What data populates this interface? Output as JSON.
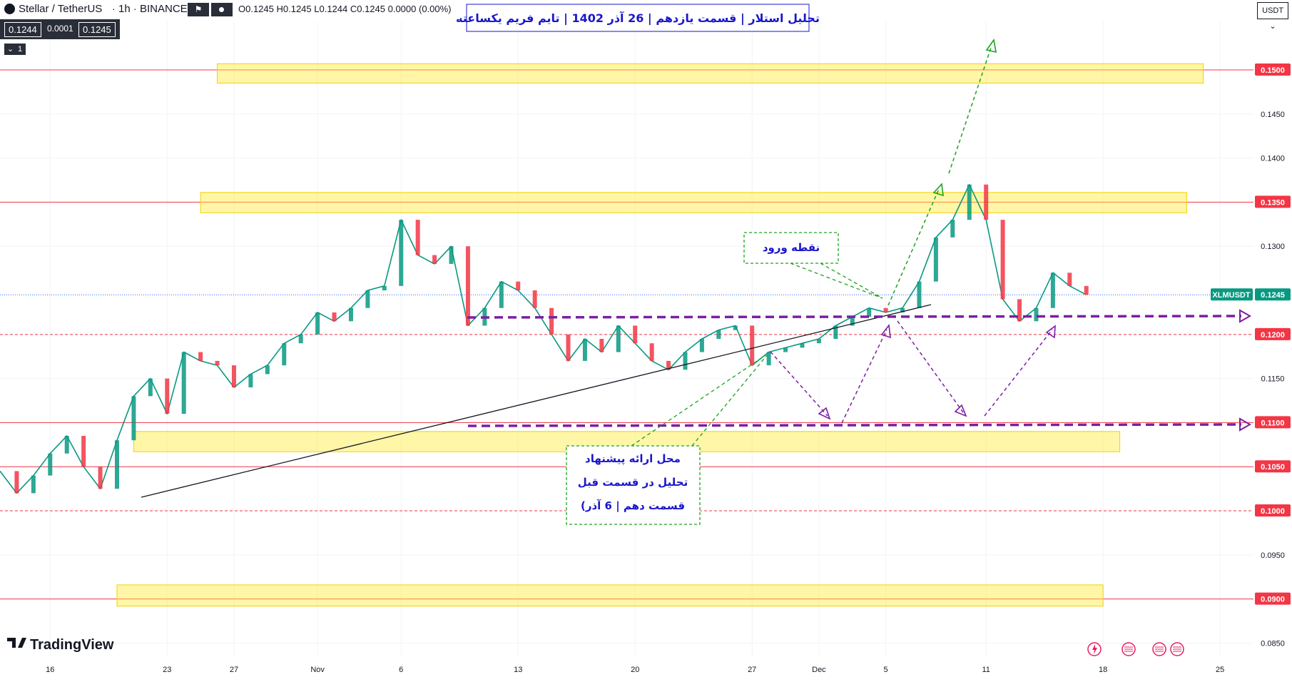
{
  "header": {
    "symbol_title": "Stellar / TetherUS",
    "interval": "1h",
    "exchange": "BINANCE",
    "ohlc": "O0.1245 H0.1245 L0.1244 C0.1245 0.0000 (0.00%)",
    "bid": "0.1244",
    "spread": "0.0001",
    "ask": "0.1245",
    "indicator_count": "1",
    "currency": "USDT"
  },
  "chart_data": {
    "type": "line",
    "title": "تحلیل استلار | قسمت یازدهم | 26 آذر 1402 | تایم فریم یکساعته",
    "symbol_tag": "XLMUSDT",
    "last_price": 0.1245,
    "last_price_label": "0.1245",
    "ylim": [
      0.0835,
      0.1555
    ],
    "y_ticks": [
      {
        "v": 0.15,
        "label": "0.1500",
        "highlight": true
      },
      {
        "v": 0.145,
        "label": "0.1450"
      },
      {
        "v": 0.14,
        "label": "0.1400"
      },
      {
        "v": 0.135,
        "label": "0.1350",
        "highlight": true
      },
      {
        "v": 0.13,
        "label": "0.1300"
      },
      {
        "v": 0.12,
        "label": "0.1200",
        "highlight": true
      },
      {
        "v": 0.115,
        "label": "0.1150"
      },
      {
        "v": 0.11,
        "label": "0.1100",
        "highlight": true
      },
      {
        "v": 0.105,
        "label": "0.1050",
        "highlight": true
      },
      {
        "v": 0.1,
        "label": "0.1000",
        "highlight": true
      },
      {
        "v": 0.095,
        "label": "0.0950"
      },
      {
        "v": 0.09,
        "label": "0.0900",
        "highlight": true
      },
      {
        "v": 0.085,
        "label": "0.0850"
      }
    ],
    "x_range": [
      "2023-10-13",
      "2023-12-27"
    ],
    "x_ticks": [
      {
        "date": "2023-10-16",
        "label": "16"
      },
      {
        "date": "2023-10-23",
        "label": "23"
      },
      {
        "date": "2023-10-27",
        "label": "27"
      },
      {
        "date": "2023-11-01",
        "label": "Nov"
      },
      {
        "date": "2023-11-06",
        "label": "6"
      },
      {
        "date": "2023-11-13",
        "label": "13"
      },
      {
        "date": "2023-11-20",
        "label": "20"
      },
      {
        "date": "2023-11-27",
        "label": "27"
      },
      {
        "date": "2023-12-01",
        "label": "Dec"
      },
      {
        "date": "2023-12-05",
        "label": "5"
      },
      {
        "date": "2023-12-11",
        "label": "11"
      },
      {
        "date": "2023-12-18",
        "label": "18"
      },
      {
        "date": "2023-12-25",
        "label": "25"
      }
    ],
    "series": [
      {
        "x": [
          "2023-10-13",
          "2023-10-14",
          "2023-10-15",
          "2023-10-16",
          "2023-10-17",
          "2023-10-18",
          "2023-10-19",
          "2023-10-20",
          "2023-10-21",
          "2023-10-22",
          "2023-10-23",
          "2023-10-24",
          "2023-10-25",
          "2023-10-26",
          "2023-10-27",
          "2023-10-28",
          "2023-10-29",
          "2023-10-30",
          "2023-10-31",
          "2023-11-01",
          "2023-11-02",
          "2023-11-03",
          "2023-11-04",
          "2023-11-05",
          "2023-11-06",
          "2023-11-07",
          "2023-11-08",
          "2023-11-09",
          "2023-11-10",
          "2023-11-11",
          "2023-11-12",
          "2023-11-13",
          "2023-11-14",
          "2023-11-15",
          "2023-11-16",
          "2023-11-17",
          "2023-11-18",
          "2023-11-19",
          "2023-11-20",
          "2023-11-21",
          "2023-11-22",
          "2023-11-23",
          "2023-11-24",
          "2023-11-25",
          "2023-11-26",
          "2023-11-27",
          "2023-11-28",
          "2023-11-29",
          "2023-11-30",
          "2023-12-01",
          "2023-12-02",
          "2023-12-03",
          "2023-12-04",
          "2023-12-05",
          "2023-12-06",
          "2023-12-07",
          "2023-12-08",
          "2023-12-09",
          "2023-12-10",
          "2023-12-11",
          "2023-12-12",
          "2023-12-13",
          "2023-12-14",
          "2023-12-15",
          "2023-12-16",
          "2023-12-17"
        ],
        "values": [
          0.1045,
          0.102,
          0.104,
          0.1065,
          0.1085,
          0.105,
          0.1025,
          0.108,
          0.113,
          0.115,
          0.111,
          0.118,
          0.117,
          0.1165,
          0.114,
          0.1155,
          0.1165,
          0.119,
          0.12,
          0.1225,
          0.1215,
          0.123,
          0.125,
          0.1255,
          0.133,
          0.129,
          0.128,
          0.13,
          0.121,
          0.123,
          0.126,
          0.125,
          0.123,
          0.12,
          0.117,
          0.1195,
          0.118,
          0.121,
          0.119,
          0.117,
          0.116,
          0.118,
          0.1195,
          0.1205,
          0.121,
          0.1165,
          0.118,
          0.1185,
          0.119,
          0.1195,
          0.121,
          0.122,
          0.123,
          0.1225,
          0.123,
          0.126,
          0.131,
          0.133,
          0.137,
          0.133,
          0.124,
          0.1215,
          0.123,
          0.127,
          0.1255,
          0.1245
        ]
      }
    ],
    "zones": [
      {
        "from": 0.1485,
        "to": 0.1507,
        "x_from": "2023-10-26",
        "x_to": "2023-12-24"
      },
      {
        "from": 0.1338,
        "to": 0.1361,
        "x_from": "2023-10-25",
        "x_to": "2023-12-23"
      },
      {
        "from": 0.1067,
        "to": 0.109,
        "x_from": "2023-10-21",
        "x_to": "2023-12-19"
      },
      {
        "from": 0.0892,
        "to": 0.0916,
        "x_from": "2023-10-20",
        "x_to": "2023-12-18"
      }
    ],
    "annotations": {
      "entry_label": "نقطه ورود",
      "previous_analysis_lines": [
        "محل ارائه پیشنهاد",
        "تحلیل در قسمت قبل",
        "(قسمت دهم | 6 آذر"
      ]
    }
  },
  "branding": {
    "logo_text": "TradingView"
  },
  "colors": {
    "level_line": "#f23645",
    "zone_fill": "#ffeb3b",
    "trend_arrow": "#1aa31a",
    "purple": "#7b1fa2",
    "title_text": "#1a16cc",
    "candle_up": "#089981",
    "candle_down": "#f23645",
    "price_tag": "#089981"
  }
}
